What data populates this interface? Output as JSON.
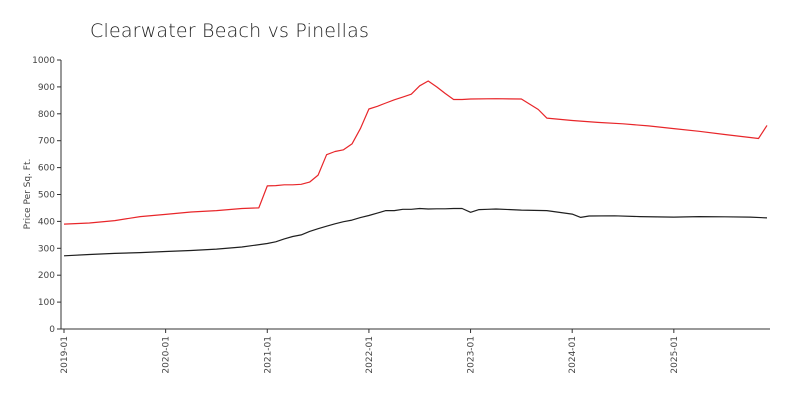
{
  "chart_data": {
    "type": "line",
    "title": "Clearwater Beach vs Pinellas",
    "xlabel": "",
    "ylabel": "Price Per Sq. Ft.",
    "ylim": [
      0,
      1000
    ],
    "xlim": [
      "2019-01",
      "2025-12"
    ],
    "y_ticks": [
      0,
      100,
      200,
      300,
      400,
      500,
      600,
      700,
      800,
      900,
      1000
    ],
    "x_ticks": [
      "2019-01",
      "2020-01",
      "2021-01",
      "2022-01",
      "2023-01",
      "2024-01",
      "2025-01"
    ],
    "legend": "none",
    "grid": false,
    "series": [
      {
        "color": "#e8262a",
        "points": [
          [
            "2019-01",
            390
          ],
          [
            "2019-04",
            394
          ],
          [
            "2019-07",
            403
          ],
          [
            "2019-10",
            418
          ],
          [
            "2020-01",
            426
          ],
          [
            "2020-04",
            435
          ],
          [
            "2020-07",
            440
          ],
          [
            "2020-10",
            448
          ],
          [
            "2020-12",
            450
          ],
          [
            "2021-01",
            532
          ],
          [
            "2021-02",
            533
          ],
          [
            "2021-03",
            536
          ],
          [
            "2021-04",
            536
          ],
          [
            "2021-05",
            538
          ],
          [
            "2021-06",
            546
          ],
          [
            "2021-07",
            572
          ],
          [
            "2021-08",
            648
          ],
          [
            "2021-09",
            660
          ],
          [
            "2021-10",
            666
          ],
          [
            "2021-11",
            688
          ],
          [
            "2021-12",
            745
          ],
          [
            "2022-01",
            818
          ],
          [
            "2022-02",
            828
          ],
          [
            "2022-03",
            840
          ],
          [
            "2022-04",
            852
          ],
          [
            "2022-05",
            862
          ],
          [
            "2022-06",
            873
          ],
          [
            "2022-07",
            904
          ],
          [
            "2022-08",
            922
          ],
          [
            "2022-09",
            900
          ],
          [
            "2022-10",
            876
          ],
          [
            "2022-11",
            853
          ],
          [
            "2022-12",
            853
          ],
          [
            "2023-01",
            855
          ],
          [
            "2023-04",
            856
          ],
          [
            "2023-07",
            855
          ],
          [
            "2023-09",
            816
          ],
          [
            "2023-10",
            784
          ],
          [
            "2024-01",
            775
          ],
          [
            "2024-04",
            768
          ],
          [
            "2024-07",
            763
          ],
          [
            "2024-10",
            755
          ],
          [
            "2025-01",
            745
          ],
          [
            "2025-04",
            735
          ],
          [
            "2025-07",
            723
          ],
          [
            "2025-10",
            712
          ],
          [
            "2025-11",
            708
          ],
          [
            "2025-12",
            757
          ]
        ]
      },
      {
        "color": "#1f1f1f",
        "points": [
          [
            "2019-01",
            272
          ],
          [
            "2019-04",
            277
          ],
          [
            "2019-07",
            281
          ],
          [
            "2019-10",
            284
          ],
          [
            "2020-01",
            288
          ],
          [
            "2020-04",
            292
          ],
          [
            "2020-07",
            297
          ],
          [
            "2020-10",
            305
          ],
          [
            "2021-01",
            318
          ],
          [
            "2021-02",
            324
          ],
          [
            "2021-03",
            335
          ],
          [
            "2021-04",
            344
          ],
          [
            "2021-05",
            350
          ],
          [
            "2021-06",
            363
          ],
          [
            "2021-07",
            373
          ],
          [
            "2021-08",
            382
          ],
          [
            "2021-09",
            391
          ],
          [
            "2021-10",
            399
          ],
          [
            "2021-11",
            405
          ],
          [
            "2021-12",
            414
          ],
          [
            "2022-01",
            422
          ],
          [
            "2022-02",
            431
          ],
          [
            "2022-03",
            440
          ],
          [
            "2022-04",
            440
          ],
          [
            "2022-05",
            445
          ],
          [
            "2022-06",
            445
          ],
          [
            "2022-07",
            448
          ],
          [
            "2022-08",
            446
          ],
          [
            "2022-09",
            447
          ],
          [
            "2022-10",
            447
          ],
          [
            "2022-11",
            448
          ],
          [
            "2022-12",
            448
          ],
          [
            "2023-01",
            434
          ],
          [
            "2023-02",
            444
          ],
          [
            "2023-03",
            445
          ],
          [
            "2023-04",
            446
          ],
          [
            "2023-07",
            442
          ],
          [
            "2023-10",
            440
          ],
          [
            "2024-01",
            427
          ],
          [
            "2024-02",
            415
          ],
          [
            "2024-03",
            420
          ],
          [
            "2024-06",
            421
          ],
          [
            "2024-09",
            418
          ],
          [
            "2025-01",
            416
          ],
          [
            "2025-04",
            418
          ],
          [
            "2025-07",
            417
          ],
          [
            "2025-10",
            416
          ],
          [
            "2025-12",
            413
          ]
        ]
      }
    ]
  }
}
